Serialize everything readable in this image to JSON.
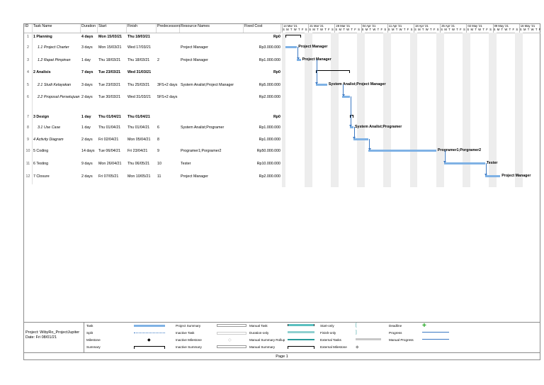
{
  "headers": {
    "id": "ID",
    "task": "Task Name",
    "duration": "Duration",
    "start": "Start",
    "finish": "Finish",
    "pred": "Predecessors",
    "resources": "Resource Names",
    "cost": "Fixed Cost"
  },
  "tasks": [
    {
      "id": "1",
      "name": "1 Planning",
      "duration": "4 days",
      "start": "Mon 15/03/21",
      "finish": "Thu 18/03/21",
      "pred": "",
      "res": "",
      "cost": "Rp0"
    },
    {
      "id": "2",
      "name": "1.1 Project Charter",
      "duration": "3 days",
      "start": "Mon 15/03/21",
      "finish": "Wed 17/03/21",
      "pred": "",
      "res": "Project Manager",
      "cost": "Rp3.000.000"
    },
    {
      "id": "3",
      "name": "1.2 Rapat Pimpinan",
      "duration": "1 day",
      "start": "Thu 18/03/21",
      "finish": "Thu 18/03/21",
      "pred": "2",
      "res": "Project Manager",
      "cost": "Rp1.000.000"
    },
    {
      "id": "4",
      "name": "2 Analisis",
      "duration": "7 days",
      "start": "Tue 23/03/21",
      "finish": "Wed 31/03/21",
      "pred": "",
      "res": "",
      "cost": "Rp0"
    },
    {
      "id": "5",
      "name": "2.1 Studi Kelayakan",
      "duration": "3 days",
      "start": "Tue 23/03/21",
      "finish": "Thu 25/03/21",
      "pred": "3FS+2 days",
      "res": "System Analist;Project Manager",
      "cost": "Rp5.000.000"
    },
    {
      "id": "6",
      "name": "2.2 Proposal Persetujuan",
      "duration": "2 days",
      "start": "Tue 30/03/21",
      "finish": "Wed 31/03/21",
      "pred": "5FS+2 days",
      "res": "",
      "cost": "Rp2.000.000"
    },
    {
      "id": "7",
      "name": "3 Design",
      "duration": "1 day",
      "start": "Thu 01/04/21",
      "finish": "Thu 01/04/21",
      "pred": "",
      "res": "",
      "cost": "Rp0"
    },
    {
      "id": "8",
      "name": "3.1 Use Case",
      "duration": "1 day",
      "start": "Thu 01/04/21",
      "finish": "Thu 01/04/21",
      "pred": "6",
      "res": "System Analist;Programer",
      "cost": "Rp1.000.000"
    },
    {
      "id": "9",
      "name": "4 Activity Diagram",
      "duration": "2 days",
      "start": "Fri 02/04/21",
      "finish": "Mon 05/04/21",
      "pred": "8",
      "res": "",
      "cost": "Rp1.000.000"
    },
    {
      "id": "10",
      "name": "5 Coding",
      "duration": "14 days",
      "start": "Tue 06/04/21",
      "finish": "Fri 23/04/21",
      "pred": "9",
      "res": "Programer1;Porgramer2",
      "cost": "Rp50.000.000"
    },
    {
      "id": "11",
      "name": "6 Testing",
      "duration": "9 days",
      "start": "Mon 26/04/21",
      "finish": "Thu 06/05/21",
      "pred": "10",
      "res": "Tester",
      "cost": "Rp10.000.000"
    },
    {
      "id": "12",
      "name": "7 Closure",
      "duration": "2 days",
      "start": "Fri 07/05/21",
      "finish": "Mon 10/05/21",
      "pred": "11",
      "res": "Project Manager",
      "cost": "Rp2.000.000"
    }
  ],
  "weeks": [
    "14 Mar '21",
    "21 Mar '21",
    "28 Mar '21",
    "04 Apr '21",
    "11 Apr '21",
    "18 Apr '21",
    "25 Apr '21",
    "02 May '21",
    "09 May '21",
    "16 May '21"
  ],
  "day_letters": "S M T W T F S",
  "gantt_labels": {
    "t2": "Project Manager",
    "t3": "Project Manager",
    "t5": "System Analist;Project Manager",
    "t8": "System Analist;Programer",
    "t10": "Programer1;Porgramer2",
    "t11": "Tester",
    "t12": "Project Manager"
  },
  "project": {
    "line1": "Project: WibyRo_ProjectJupiter",
    "line2": "Date: Fri 08/01/21"
  },
  "legend": {
    "task": "Task",
    "split": "Split",
    "milestone": "Milestone",
    "summary": "Summary",
    "project_summary": "Project Summary",
    "inactive_task": "Inactive Task",
    "inactive_milestone": "Inactive Milestone",
    "inactive_summary": "Inactive Summary",
    "manual_task": "Manual Task",
    "duration_only": "Duration-only",
    "manual_summary_rollup": "Manual Summary Rollup",
    "manual_summary": "Manual Summary",
    "start_only": "Start-only",
    "finish_only": "Finish-only",
    "external_tasks": "External Tasks",
    "external_milestone": "External Milestone",
    "deadline": "Deadline",
    "progress": "Progress",
    "manual_progress": "Manual Progress"
  },
  "footer": "Page 1",
  "colors": {
    "bar": "#7fb2e5",
    "link": "#3a78c3",
    "deadline": "#3cb13c"
  }
}
